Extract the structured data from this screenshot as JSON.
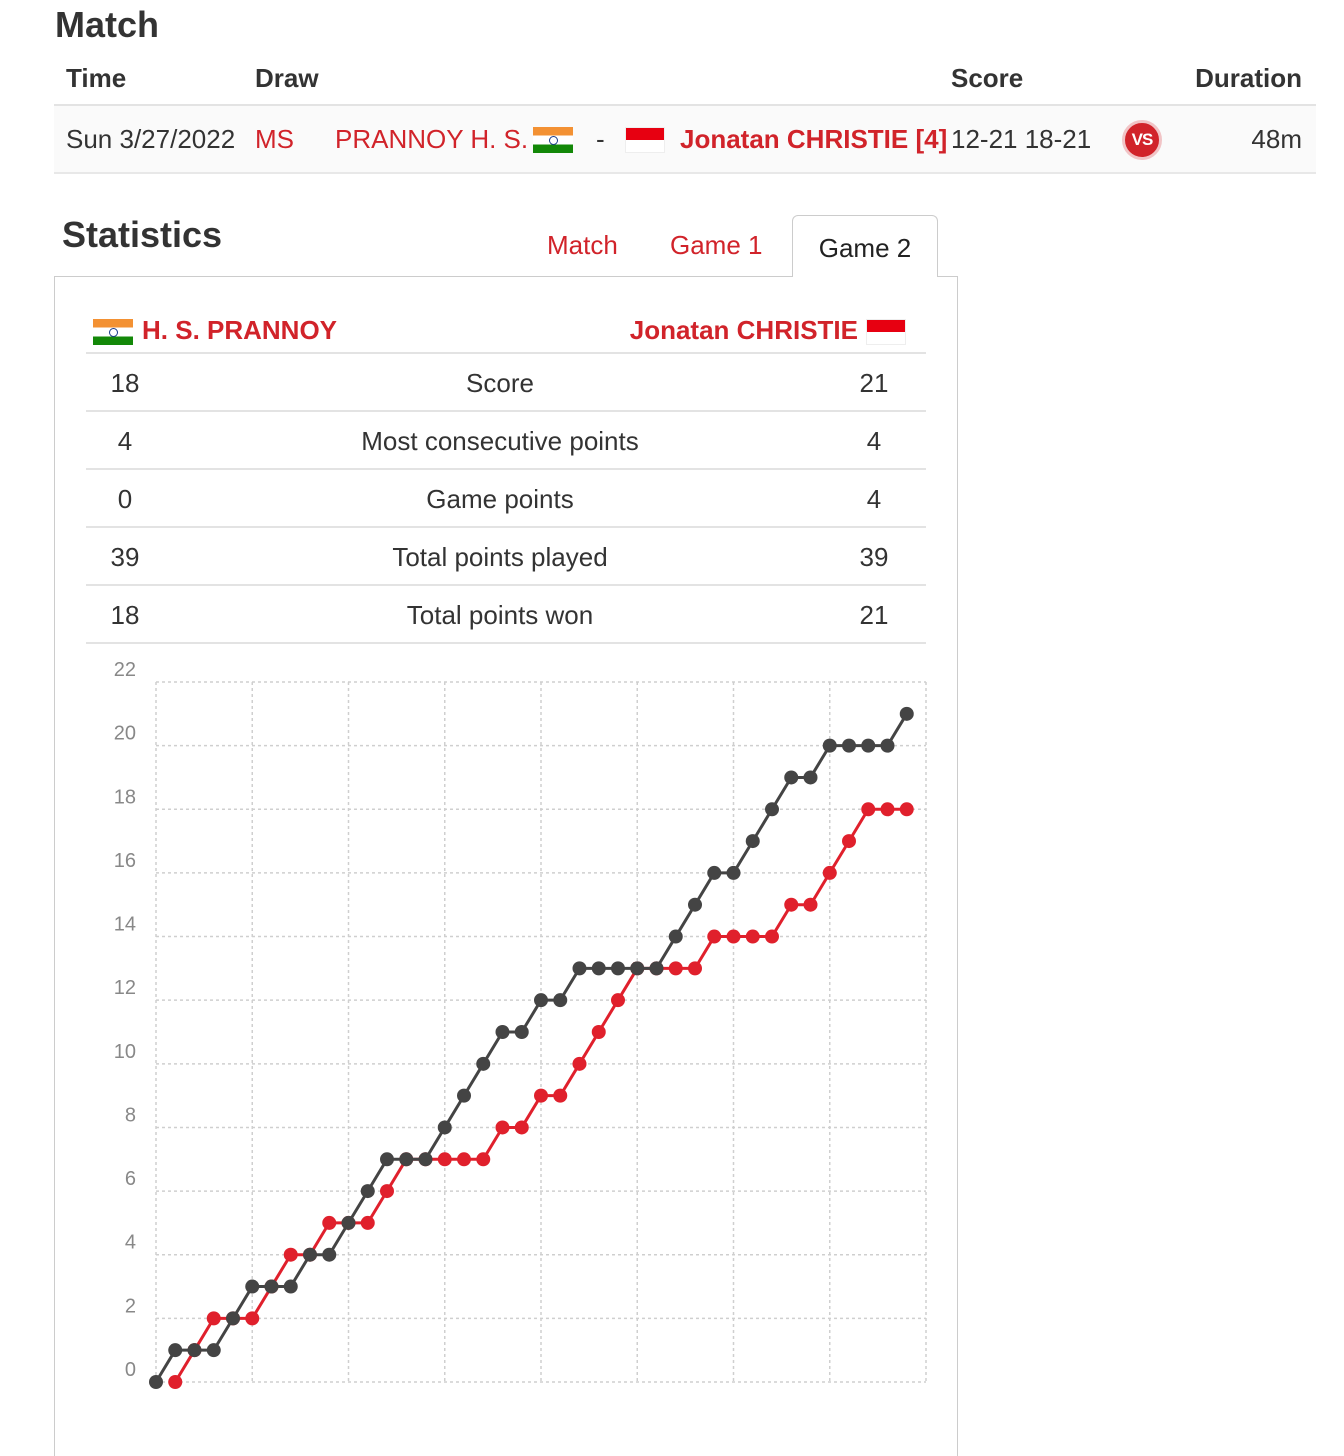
{
  "match": {
    "title": "Match",
    "headers": {
      "time": "Time",
      "draw": "Draw",
      "score": "Score",
      "duration": "Duration"
    },
    "row": {
      "date": "Sun 3/27/2022",
      "draw": "MS",
      "player1": "PRANNOY H. S.",
      "separator": "-",
      "player2": "Jonatan CHRISTIE [4]",
      "score": "12-21 18-21",
      "vs_label": "VS",
      "duration": "48m"
    }
  },
  "statistics": {
    "title": "Statistics",
    "tabs": [
      {
        "label": "Match",
        "active": false
      },
      {
        "label": "Game 1",
        "active": false
      },
      {
        "label": "Game 2",
        "active": true
      }
    ],
    "player_left": "H. S. PRANNOY",
    "player_right": "Jonatan CHRISTIE",
    "rows": [
      {
        "left": "18",
        "label": "Score",
        "right": "21"
      },
      {
        "left": "4",
        "label": "Most consecutive points",
        "right": "4"
      },
      {
        "left": "0",
        "label": "Game points",
        "right": "4"
      },
      {
        "left": "39",
        "label": "Total points played",
        "right": "39"
      },
      {
        "left": "18",
        "label": "Total points won",
        "right": "21"
      }
    ]
  },
  "colors": {
    "accent": "#d1232a",
    "christie_line": "#444444",
    "prannoy_line": "#e0202c"
  },
  "icons": {
    "flag_left": "india-flag-icon",
    "flag_right": "indonesia-flag-icon",
    "vs": "vs-icon"
  },
  "chart_data": {
    "type": "line",
    "title": "",
    "xlabel": "",
    "ylabel": "",
    "ylim": [
      0,
      22
    ],
    "xlim": [
      0,
      40
    ],
    "y_ticks": [
      "0",
      "2",
      "4",
      "6",
      "8",
      "10",
      "12",
      "14",
      "16",
      "18",
      "20",
      "22"
    ],
    "grid": true,
    "series": [
      {
        "color": "#444444",
        "x": [
          0,
          1,
          2,
          3,
          4,
          5,
          6,
          7,
          8,
          9,
          10,
          11,
          12,
          13,
          14,
          15,
          16,
          17,
          18,
          19,
          20,
          21,
          22,
          23,
          24,
          25,
          26,
          27,
          28,
          29,
          30,
          31,
          32,
          33,
          34,
          35,
          36,
          37,
          38,
          39
        ],
        "values": [
          0,
          1,
          1,
          1,
          2,
          3,
          3,
          3,
          4,
          4,
          5,
          6,
          7,
          7,
          7,
          8,
          9,
          10,
          11,
          11,
          12,
          12,
          13,
          13,
          13,
          13,
          13,
          14,
          15,
          16,
          16,
          17,
          18,
          19,
          19,
          20,
          20,
          20,
          20,
          21
        ]
      },
      {
        "color": "#e0202c",
        "x": [
          1,
          2,
          3,
          4,
          5,
          6,
          7,
          8,
          9,
          10,
          11,
          12,
          13,
          14,
          15,
          16,
          17,
          18,
          19,
          20,
          21,
          22,
          23,
          24,
          25,
          26,
          27,
          28,
          29,
          30,
          31,
          32,
          33,
          34,
          35,
          36,
          37,
          38,
          39
        ],
        "values": [
          0,
          1,
          2,
          2,
          2,
          3,
          4,
          4,
          5,
          5,
          5,
          6,
          7,
          7,
          7,
          7,
          7,
          8,
          8,
          9,
          9,
          10,
          11,
          12,
          13,
          13,
          13,
          13,
          14,
          14,
          14,
          14,
          15,
          15,
          16,
          17,
          18,
          18,
          18
        ]
      }
    ]
  }
}
